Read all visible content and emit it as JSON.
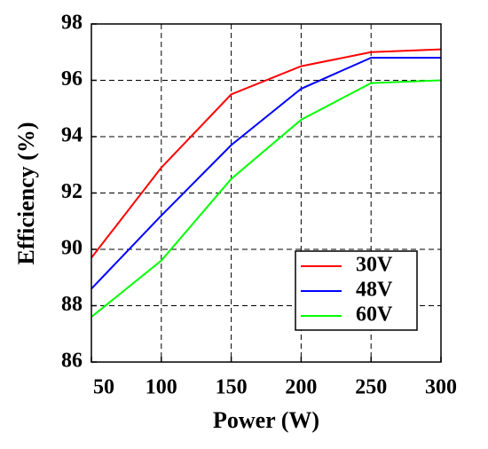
{
  "chart_data": {
    "type": "line",
    "xlabel": "Power (W)",
    "ylabel": "Efficiency (%)",
    "x": [
      50,
      100,
      150,
      200,
      250,
      300
    ],
    "series": [
      {
        "name": "30V",
        "color": "#ff0000",
        "values": [
          89.7,
          92.9,
          95.5,
          96.5,
          97.0,
          97.1
        ]
      },
      {
        "name": "48V",
        "color": "#0000ff",
        "values": [
          88.6,
          91.2,
          93.7,
          95.7,
          96.8,
          96.8
        ]
      },
      {
        "name": "60V",
        "color": "#00ff00",
        "values": [
          87.6,
          89.6,
          92.5,
          94.6,
          95.9,
          96.0
        ]
      }
    ],
    "xlim": [
      50,
      300
    ],
    "xticks": [
      50,
      100,
      150,
      200,
      250,
      300
    ],
    "ylim": [
      86,
      98
    ],
    "yticks": [
      86,
      88,
      90,
      92,
      94,
      96,
      98
    ],
    "grid": true,
    "legend": "lower right"
  }
}
